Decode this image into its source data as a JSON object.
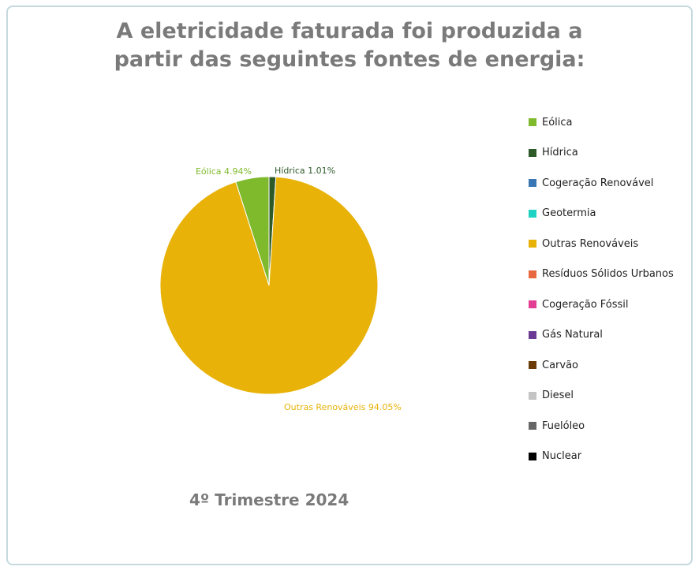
{
  "title_line1": "A eletricidade faturada foi produzida a",
  "title_line2": "partir das seguintes fontes de energia:",
  "period": "4º Trimestre 2024",
  "chart_data": {
    "type": "pie",
    "slices": [
      {
        "name": "Hídrica",
        "value": 1.01,
        "label": "Hídrica 1.01%",
        "color": "#2e5a2a"
      },
      {
        "name": "Outras Renováveis",
        "value": 94.05,
        "label": "Outras Renováveis 94.05%",
        "color": "#e8b208"
      },
      {
        "name": "Eólica",
        "value": 4.94,
        "label": "Eólica 4.94%",
        "color": "#7fba2c"
      }
    ],
    "legend_position": "right",
    "legend": [
      {
        "name": "Eólica",
        "color": "#7fba2c"
      },
      {
        "name": "Hídrica",
        "color": "#2e5a2a"
      },
      {
        "name": "Cogeração Renovável",
        "color": "#3a78b5"
      },
      {
        "name": "Geotermia",
        "color": "#1ed3c4"
      },
      {
        "name": "Outras Renováveis",
        "color": "#e8b208"
      },
      {
        "name": "Resíduos Sólidos Urbanos",
        "color": "#e8683f"
      },
      {
        "name": "Cogeração Fóssil",
        "color": "#e23e94"
      },
      {
        "name": "Gás Natural",
        "color": "#6b3a94"
      },
      {
        "name": "Carvão",
        "color": "#6b3a06"
      },
      {
        "name": "Diesel",
        "color": "#c4c4c4"
      },
      {
        "name": "Fuelóleo",
        "color": "#666666"
      },
      {
        "name": "Nuclear",
        "color": "#000000"
      }
    ]
  }
}
